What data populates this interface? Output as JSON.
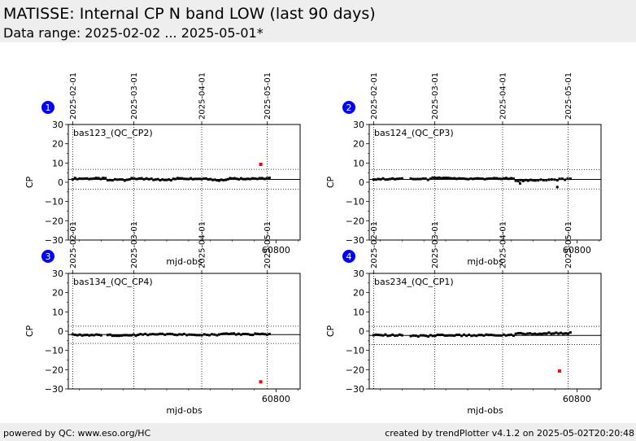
{
  "header": {
    "title": "MATISSE: Internal CP N band LOW (last 90 days)",
    "subtitle": "Data range: 2025-02-02 ... 2025-05-01*"
  },
  "footer": {
    "left": "powered by QC: www.eso.org/HC",
    "right": "created by trendPlotter v4.1.2 on 2025-05-02T20:20:48"
  },
  "colors": {
    "points": "#000000",
    "outlier": "#ff0000",
    "badge": "#0000ff",
    "header_bg": "#eeeeee"
  },
  "chart_data": [
    {
      "type": "scatter",
      "panel_number": "1",
      "label": "bas123_(QC_CP2)",
      "xlabel": "mjd-obs",
      "ylabel": "CP",
      "xlim": [
        60705,
        60811
      ],
      "ylim": [
        -30,
        30
      ],
      "yticks": [
        -30,
        -20,
        -10,
        0,
        10,
        20,
        30
      ],
      "xticks": [
        60800
      ],
      "date_ticks": [
        {
          "label": "2025-02-01",
          "x": 60707
        },
        {
          "label": "2025-03-01",
          "x": 60735
        },
        {
          "label": "2025-04-01",
          "x": 60766
        },
        {
          "label": "2025-05-01",
          "x": 60796
        }
      ],
      "median": 1.5,
      "thresholds": [
        6.7,
        -3.6
      ],
      "segments": [
        {
          "x0": 60707,
          "x1": 60722,
          "y": 1.9,
          "n": 15
        },
        {
          "x0": 60723,
          "x1": 60733,
          "y": 1.2,
          "n": 10
        },
        {
          "x0": 60734,
          "x1": 60743,
          "y": 1.9,
          "n": 9
        },
        {
          "x0": 60744,
          "x1": 60752,
          "y": 1.3,
          "n": 9
        },
        {
          "x0": 60753,
          "x1": 60762,
          "y": 1.9,
          "n": 10
        },
        {
          "x0": 60763,
          "x1": 60770,
          "y": 1.8,
          "n": 8
        },
        {
          "x0": 60771,
          "x1": 60777,
          "y": 1.1,
          "n": 7
        },
        {
          "x0": 60778,
          "x1": 60786,
          "y": 1.8,
          "n": 9
        },
        {
          "x0": 60787,
          "x1": 60797,
          "y": 2.0,
          "n": 10
        }
      ],
      "outliers": [
        {
          "x": 60793,
          "y": 9.3
        }
      ]
    },
    {
      "type": "scatter",
      "panel_number": "2",
      "label": "bas124_(QC_CP3)",
      "xlabel": "mjd-obs",
      "ylabel": "CP",
      "xlim": [
        60705,
        60811
      ],
      "ylim": [
        -30,
        30
      ],
      "yticks": [
        -30,
        -20,
        -10,
        0,
        10,
        20,
        30
      ],
      "xticks": [
        60800
      ],
      "date_ticks": [
        {
          "label": "2025-02-01",
          "x": 60707
        },
        {
          "label": "2025-03-01",
          "x": 60735
        },
        {
          "label": "2025-04-01",
          "x": 60766
        },
        {
          "label": "2025-05-01",
          "x": 60796
        }
      ],
      "median": 1.5,
      "thresholds": [
        6.6,
        -3.5
      ],
      "segments": [
        {
          "x0": 60707,
          "x1": 60720,
          "y": 1.7,
          "n": 13
        },
        {
          "x0": 60724,
          "x1": 60733,
          "y": 1.6,
          "n": 9
        },
        {
          "x0": 60734,
          "x1": 60744,
          "y": 2.2,
          "n": 11
        },
        {
          "x0": 60745,
          "x1": 60760,
          "y": 1.7,
          "n": 15
        },
        {
          "x0": 60761,
          "x1": 60771,
          "y": 1.9,
          "n": 10
        },
        {
          "x0": 60772,
          "x1": 60780,
          "y": 0.9,
          "n": 8
        },
        {
          "x0": 60781,
          "x1": 60791,
          "y": 1.2,
          "n": 9
        },
        {
          "x0": 60792,
          "x1": 60797,
          "y": 1.6,
          "n": 5
        }
      ],
      "extra_points": [
        {
          "x": 60774,
          "y": -0.6
        },
        {
          "x": 60791,
          "y": -2.5
        }
      ],
      "outliers": []
    },
    {
      "type": "scatter",
      "panel_number": "3",
      "label": "bas134_(QC_CP4)",
      "xlabel": "mjd-obs",
      "ylabel": "CP",
      "xlim": [
        60705,
        60811
      ],
      "ylim": [
        -30,
        30
      ],
      "yticks": [
        -30,
        -20,
        -10,
        0,
        10,
        20,
        30
      ],
      "xticks": [
        60800
      ],
      "date_ticks": [
        {
          "label": "2025-02-01",
          "x": 60707
        },
        {
          "label": "2025-03-01",
          "x": 60735
        },
        {
          "label": "2025-04-01",
          "x": 60766
        },
        {
          "label": "2025-05-01",
          "x": 60796
        }
      ],
      "median": -1.8,
      "thresholds": [
        2.6,
        -6.4
      ],
      "segments": [
        {
          "x0": 60707,
          "x1": 60720,
          "y": -2.0,
          "n": 13
        },
        {
          "x0": 60723,
          "x1": 60737,
          "y": -2.1,
          "n": 14
        },
        {
          "x0": 60738,
          "x1": 60757,
          "y": -1.7,
          "n": 18
        },
        {
          "x0": 60758,
          "x1": 60773,
          "y": -1.8,
          "n": 14
        },
        {
          "x0": 60774,
          "x1": 60784,
          "y": -1.5,
          "n": 10
        },
        {
          "x0": 60785,
          "x1": 60797,
          "y": -1.6,
          "n": 12
        }
      ],
      "outliers": [
        {
          "x": 60793,
          "y": -26.3
        }
      ]
    },
    {
      "type": "scatter",
      "panel_number": "4",
      "label": "bas234_(QC_CP1)",
      "xlabel": "mjd-obs",
      "ylabel": "CP",
      "xlim": [
        60705,
        60811
      ],
      "ylim": [
        -30,
        30
      ],
      "yticks": [
        -30,
        -20,
        -10,
        0,
        10,
        20,
        30
      ],
      "xticks": [
        60800
      ],
      "date_ticks": [
        {
          "label": "2025-02-01",
          "x": 60707
        },
        {
          "label": "2025-03-01",
          "x": 60735
        },
        {
          "label": "2025-04-01",
          "x": 60766
        },
        {
          "label": "2025-05-01",
          "x": 60796
        }
      ],
      "median": -2.2,
      "thresholds": [
        2.5,
        -7.0
      ],
      "segments": [
        {
          "x0": 60707,
          "x1": 60720,
          "y": -2.1,
          "n": 13
        },
        {
          "x0": 60724,
          "x1": 60732,
          "y": -2.5,
          "n": 8
        },
        {
          "x0": 60733,
          "x1": 60744,
          "y": -2.2,
          "n": 11
        },
        {
          "x0": 60745,
          "x1": 60771,
          "y": -2.1,
          "n": 24
        },
        {
          "x0": 60772,
          "x1": 60784,
          "y": -1.3,
          "n": 12
        },
        {
          "x0": 60785,
          "x1": 60797,
          "y": -1.0,
          "n": 12
        }
      ],
      "outliers": [
        {
          "x": 60792,
          "y": -20.7
        }
      ]
    }
  ]
}
